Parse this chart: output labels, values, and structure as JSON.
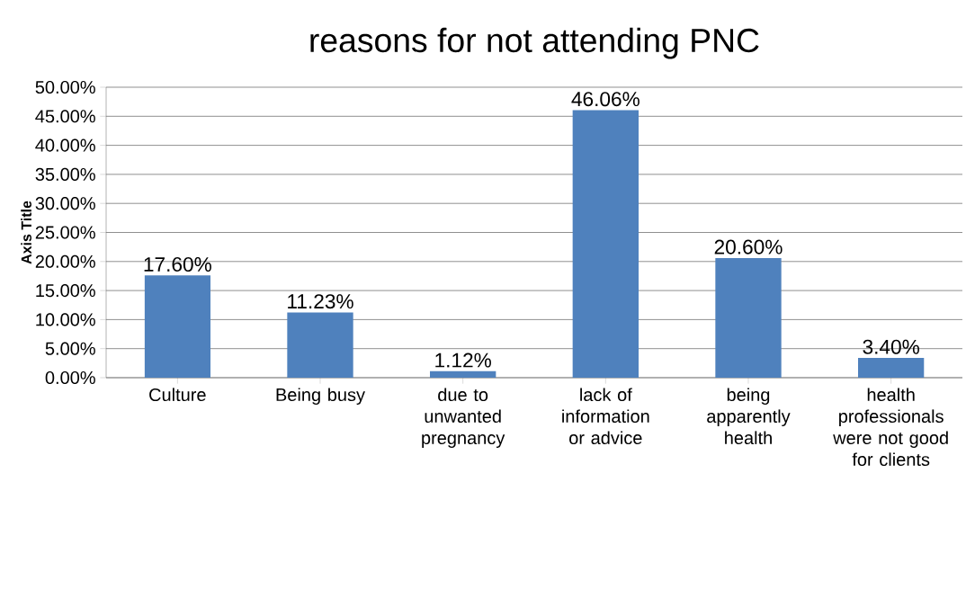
{
  "chart_data": {
    "type": "bar",
    "title": "reasons for not attending PNC",
    "ylabel": "Axis Title",
    "categories": [
      "Culture",
      "Being busy",
      "due to unwanted pregnancy",
      "lack of information or advice",
      "being apparently health",
      "health professionals were not good for clients"
    ],
    "values": [
      17.6,
      11.23,
      1.12,
      46.06,
      20.6,
      3.4
    ],
    "value_labels": [
      "17.60%",
      "11.23%",
      "1.12%",
      "46.06%",
      "20.60%",
      "3.40%"
    ],
    "color": "#4f81bd",
    "ylim": [
      0,
      50
    ],
    "yticks": [
      {
        "value": 0,
        "label": "0.00%"
      },
      {
        "value": 5,
        "label": "5.00%"
      },
      {
        "value": 10,
        "label": "10.00%"
      },
      {
        "value": 15,
        "label": "15.00%"
      },
      {
        "value": 20,
        "label": "20.00%"
      },
      {
        "value": 25,
        "label": "25.00%"
      },
      {
        "value": 30,
        "label": "30.00%"
      },
      {
        "value": 35,
        "label": "35.00%"
      },
      {
        "value": 40,
        "label": "40.00%"
      },
      {
        "value": 45,
        "label": "45.00%"
      },
      {
        "value": 50,
        "label": "50.00%"
      }
    ],
    "grid": "y"
  }
}
